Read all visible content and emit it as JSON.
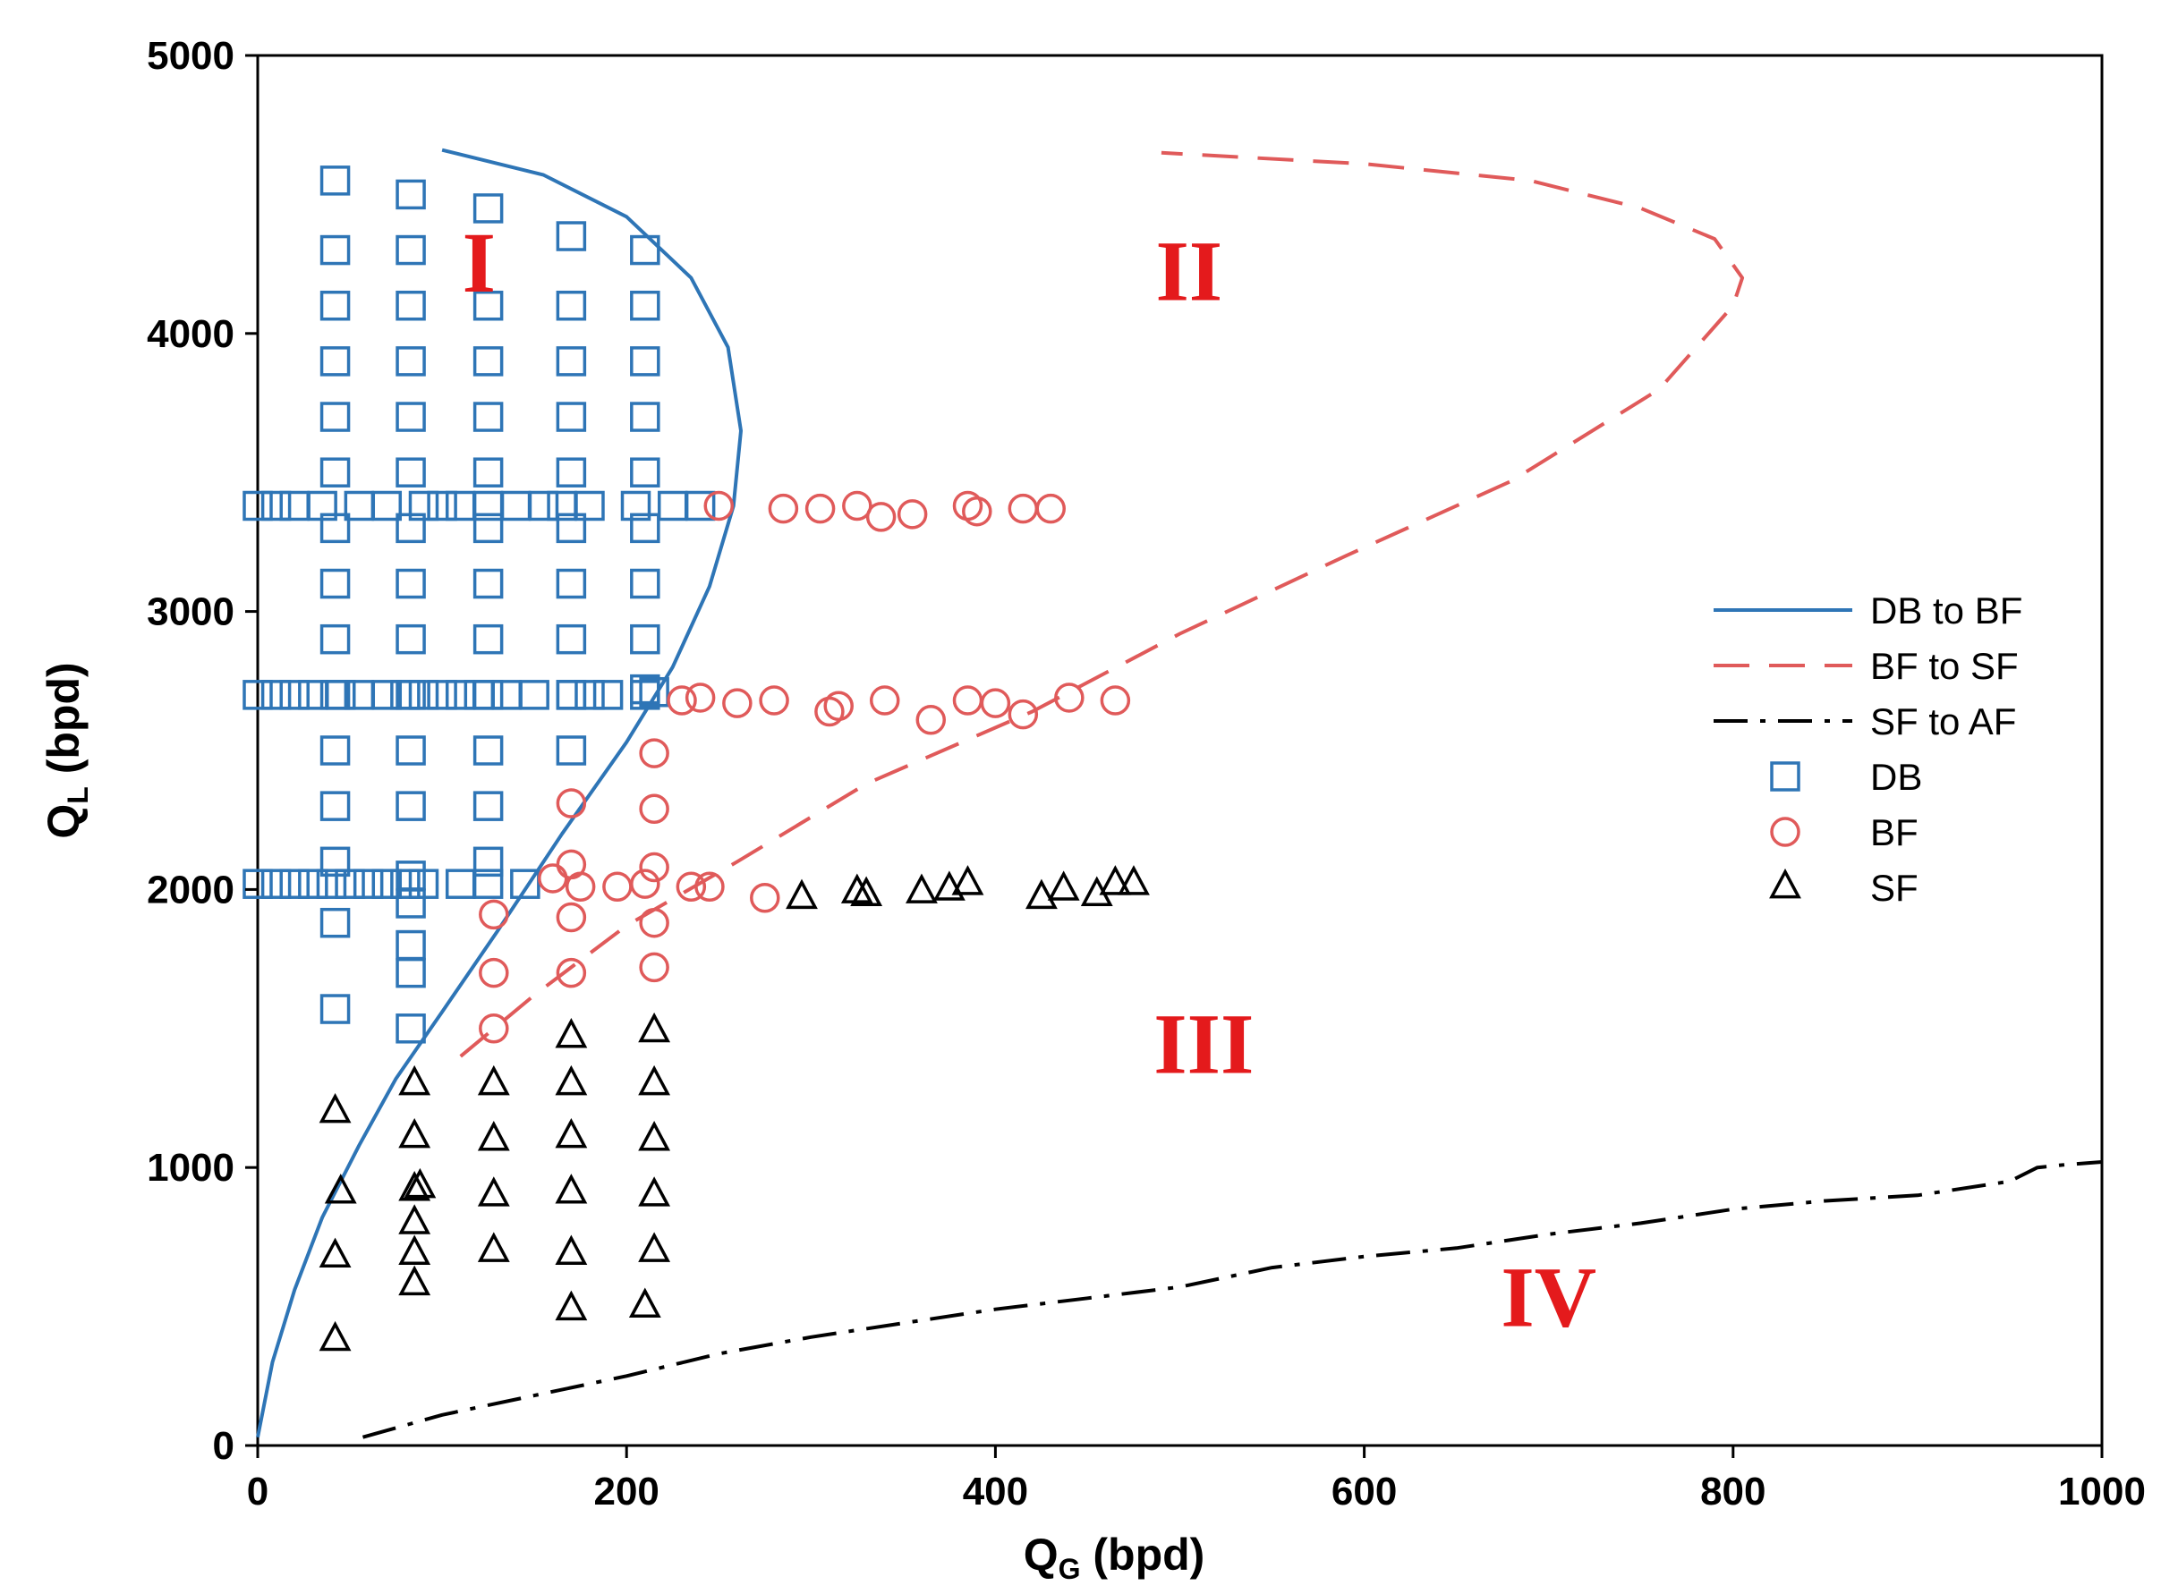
{
  "chart_data": {
    "type": "scatter",
    "xlabel": {
      "main": "Q",
      "sub": "G",
      "unit": " (bpd)"
    },
    "ylabel": {
      "main": "Q",
      "sub": "L",
      "unit": " (bpd)"
    },
    "xlim": [
      0,
      1000
    ],
    "ylim": [
      0,
      5000
    ],
    "xticks": [
      "0",
      "200",
      "400",
      "600",
      "800",
      "1000"
    ],
    "yticks": [
      "0",
      "1000",
      "2000",
      "3000",
      "4000",
      "5000"
    ],
    "grid": false,
    "legend_position": "right",
    "colors": {
      "db": "#2e75b6",
      "bf": "#e05a5a",
      "sf": "#000000"
    },
    "lines": [
      {
        "name": "DB to BF",
        "style": "solid",
        "color": "#2e75b6",
        "points": [
          [
            0,
            30
          ],
          [
            8,
            300
          ],
          [
            20,
            560
          ],
          [
            35,
            820
          ],
          [
            55,
            1080
          ],
          [
            75,
            1320
          ],
          [
            100,
            1560
          ],
          [
            130,
            1850
          ],
          [
            165,
            2200
          ],
          [
            200,
            2530
          ],
          [
            225,
            2800
          ],
          [
            245,
            3090
          ],
          [
            258,
            3380
          ],
          [
            262,
            3650
          ],
          [
            255,
            3950
          ],
          [
            235,
            4200
          ],
          [
            200,
            4420
          ],
          [
            155,
            4570
          ],
          [
            100,
            4660
          ]
        ]
      },
      {
        "name": "BF to SF",
        "style": "dashed",
        "color": "#e05a5a",
        "points": [
          [
            110,
            1400
          ],
          [
            150,
            1620
          ],
          [
            200,
            1870
          ],
          [
            260,
            2100
          ],
          [
            330,
            2380
          ],
          [
            420,
            2640
          ],
          [
            500,
            2920
          ],
          [
            590,
            3200
          ],
          [
            680,
            3470
          ],
          [
            760,
            3800
          ],
          [
            800,
            4100
          ],
          [
            805,
            4200
          ],
          [
            790,
            4340
          ],
          [
            750,
            4450
          ],
          [
            690,
            4550
          ],
          [
            600,
            4610
          ],
          [
            490,
            4650
          ]
        ]
      },
      {
        "name": "SF to AF",
        "style": "dashdot",
        "color": "#000000",
        "points": [
          [
            57,
            30
          ],
          [
            100,
            110
          ],
          [
            150,
            180
          ],
          [
            200,
            250
          ],
          [
            250,
            330
          ],
          [
            300,
            390
          ],
          [
            350,
            440
          ],
          [
            400,
            490
          ],
          [
            450,
            530
          ],
          [
            500,
            570
          ],
          [
            550,
            640
          ],
          [
            600,
            680
          ],
          [
            650,
            710
          ],
          [
            700,
            760
          ],
          [
            750,
            800
          ],
          [
            800,
            850
          ],
          [
            850,
            880
          ],
          [
            900,
            900
          ],
          [
            950,
            950
          ],
          [
            965,
            1000
          ],
          [
            980,
            1010
          ],
          [
            1000,
            1020
          ]
        ]
      }
    ],
    "series": [
      {
        "name": "DB",
        "marker": "square",
        "color": "#2e75b6",
        "points": [
          [
            42,
            4550
          ],
          [
            42,
            4300
          ],
          [
            42,
            4100
          ],
          [
            42,
            3900
          ],
          [
            42,
            3700
          ],
          [
            42,
            3500
          ],
          [
            42,
            3300
          ],
          [
            42,
            3100
          ],
          [
            42,
            2900
          ],
          [
            42,
            2700
          ],
          [
            42,
            2500
          ],
          [
            42,
            2300
          ],
          [
            42,
            2100
          ],
          [
            42,
            1880
          ],
          [
            42,
            1570
          ],
          [
            83,
            4500
          ],
          [
            83,
            4300
          ],
          [
            83,
            4100
          ],
          [
            83,
            3900
          ],
          [
            83,
            3700
          ],
          [
            83,
            3500
          ],
          [
            83,
            3300
          ],
          [
            83,
            3100
          ],
          [
            83,
            2900
          ],
          [
            83,
            2700
          ],
          [
            83,
            2500
          ],
          [
            83,
            2300
          ],
          [
            83,
            2050
          ],
          [
            83,
            1950
          ],
          [
            83,
            1800
          ],
          [
            83,
            1700
          ],
          [
            83,
            1500
          ],
          [
            125,
            4450
          ],
          [
            125,
            4100
          ],
          [
            125,
            3900
          ],
          [
            125,
            3700
          ],
          [
            125,
            3500
          ],
          [
            125,
            3300
          ],
          [
            125,
            3100
          ],
          [
            125,
            2900
          ],
          [
            125,
            2700
          ],
          [
            125,
            2500
          ],
          [
            125,
            2300
          ],
          [
            125,
            2100
          ],
          [
            170,
            4350
          ],
          [
            170,
            4100
          ],
          [
            170,
            3900
          ],
          [
            170,
            3700
          ],
          [
            170,
            3500
          ],
          [
            170,
            3300
          ],
          [
            170,
            3100
          ],
          [
            170,
            2900
          ],
          [
            170,
            2700
          ],
          [
            170,
            2500
          ],
          [
            210,
            4300
          ],
          [
            210,
            4100
          ],
          [
            210,
            3900
          ],
          [
            210,
            3700
          ],
          [
            210,
            3500
          ],
          [
            210,
            3300
          ],
          [
            210,
            3100
          ],
          [
            210,
            2900
          ],
          [
            210,
            2720
          ],
          [
            0,
            3380
          ],
          [
            10,
            3380
          ],
          [
            20,
            3380
          ],
          [
            35,
            3380
          ],
          [
            55,
            3380
          ],
          [
            70,
            3380
          ],
          [
            90,
            3380
          ],
          [
            100,
            3380
          ],
          [
            110,
            3380
          ],
          [
            125,
            3380
          ],
          [
            140,
            3380
          ],
          [
            155,
            3380
          ],
          [
            165,
            3380
          ],
          [
            180,
            3380
          ],
          [
            205,
            3380
          ],
          [
            225,
            3380
          ],
          [
            240,
            3380
          ],
          [
            0,
            2700
          ],
          [
            10,
            2700
          ],
          [
            20,
            2700
          ],
          [
            30,
            2700
          ],
          [
            45,
            2700
          ],
          [
            55,
            2700
          ],
          [
            70,
            2700
          ],
          [
            80,
            2700
          ],
          [
            90,
            2700
          ],
          [
            100,
            2700
          ],
          [
            110,
            2700
          ],
          [
            120,
            2700
          ],
          [
            135,
            2700
          ],
          [
            150,
            2700
          ],
          [
            170,
            2700
          ],
          [
            180,
            2700
          ],
          [
            190,
            2700
          ],
          [
            210,
            2700
          ],
          [
            215,
            2710
          ],
          [
            0,
            2020
          ],
          [
            10,
            2020
          ],
          [
            20,
            2020
          ],
          [
            30,
            2020
          ],
          [
            40,
            2020
          ],
          [
            50,
            2020
          ],
          [
            60,
            2020
          ],
          [
            70,
            2020
          ],
          [
            80,
            2020
          ],
          [
            90,
            2020
          ],
          [
            110,
            2020
          ],
          [
            125,
            2020
          ],
          [
            145,
            2020
          ]
        ]
      },
      {
        "name": "BF",
        "marker": "circle",
        "color": "#e05a5a",
        "points": [
          [
            250,
            3380
          ],
          [
            285,
            3370
          ],
          [
            305,
            3370
          ],
          [
            325,
            3380
          ],
          [
            338,
            3340
          ],
          [
            355,
            3350
          ],
          [
            385,
            3380
          ],
          [
            390,
            3360
          ],
          [
            415,
            3370
          ],
          [
            430,
            3370
          ],
          [
            230,
            2680
          ],
          [
            240,
            2690
          ],
          [
            260,
            2670
          ],
          [
            280,
            2680
          ],
          [
            310,
            2640
          ],
          [
            315,
            2660
          ],
          [
            340,
            2680
          ],
          [
            365,
            2610
          ],
          [
            385,
            2680
          ],
          [
            400,
            2670
          ],
          [
            415,
            2630
          ],
          [
            440,
            2690
          ],
          [
            465,
            2680
          ],
          [
            160,
            2040
          ],
          [
            175,
            2010
          ],
          [
            195,
            2010
          ],
          [
            210,
            2020
          ],
          [
            235,
            2010
          ],
          [
            245,
            2010
          ],
          [
            275,
            1970
          ],
          [
            215,
            2490
          ],
          [
            215,
            2290
          ],
          [
            215,
            2080
          ],
          [
            215,
            1880
          ],
          [
            215,
            1720
          ],
          [
            170,
            2310
          ],
          [
            170,
            2090
          ],
          [
            170,
            1900
          ],
          [
            170,
            1700
          ],
          [
            128,
            1910
          ],
          [
            128,
            1700
          ],
          [
            128,
            1500
          ]
        ]
      },
      {
        "name": "SF",
        "marker": "triangle",
        "color": "#000000",
        "points": [
          [
            295,
            1970
          ],
          [
            325,
            1990
          ],
          [
            330,
            1980
          ],
          [
            360,
            1990
          ],
          [
            375,
            2000
          ],
          [
            385,
            2020
          ],
          [
            425,
            1970
          ],
          [
            437,
            2000
          ],
          [
            455,
            1980
          ],
          [
            465,
            2020
          ],
          [
            475,
            2020
          ],
          [
            215,
            1490
          ],
          [
            215,
            1300
          ],
          [
            215,
            1100
          ],
          [
            215,
            900
          ],
          [
            215,
            700
          ],
          [
            210,
            500
          ],
          [
            170,
            1470
          ],
          [
            170,
            1300
          ],
          [
            170,
            1110
          ],
          [
            170,
            910
          ],
          [
            170,
            690
          ],
          [
            170,
            490
          ],
          [
            128,
            1300
          ],
          [
            128,
            1100
          ],
          [
            128,
            900
          ],
          [
            128,
            700
          ],
          [
            85,
            1300
          ],
          [
            85,
            1110
          ],
          [
            85,
            920
          ],
          [
            85,
            800
          ],
          [
            85,
            690
          ],
          [
            85,
            580
          ],
          [
            88,
            930
          ],
          [
            42,
            1200
          ],
          [
            45,
            910
          ],
          [
            42,
            680
          ],
          [
            42,
            380
          ]
        ]
      }
    ],
    "regions": [
      {
        "label": "I",
        "x": 120,
        "y": 4150
      },
      {
        "label": "II",
        "x": 505,
        "y": 4120
      },
      {
        "label": "III",
        "x": 513,
        "y": 1340
      },
      {
        "label": "IV",
        "x": 700,
        "y": 430
      }
    ],
    "legend": [
      "DB to BF",
      "BF to SF",
      "SF to AF",
      "DB",
      "BF",
      "SF"
    ]
  }
}
